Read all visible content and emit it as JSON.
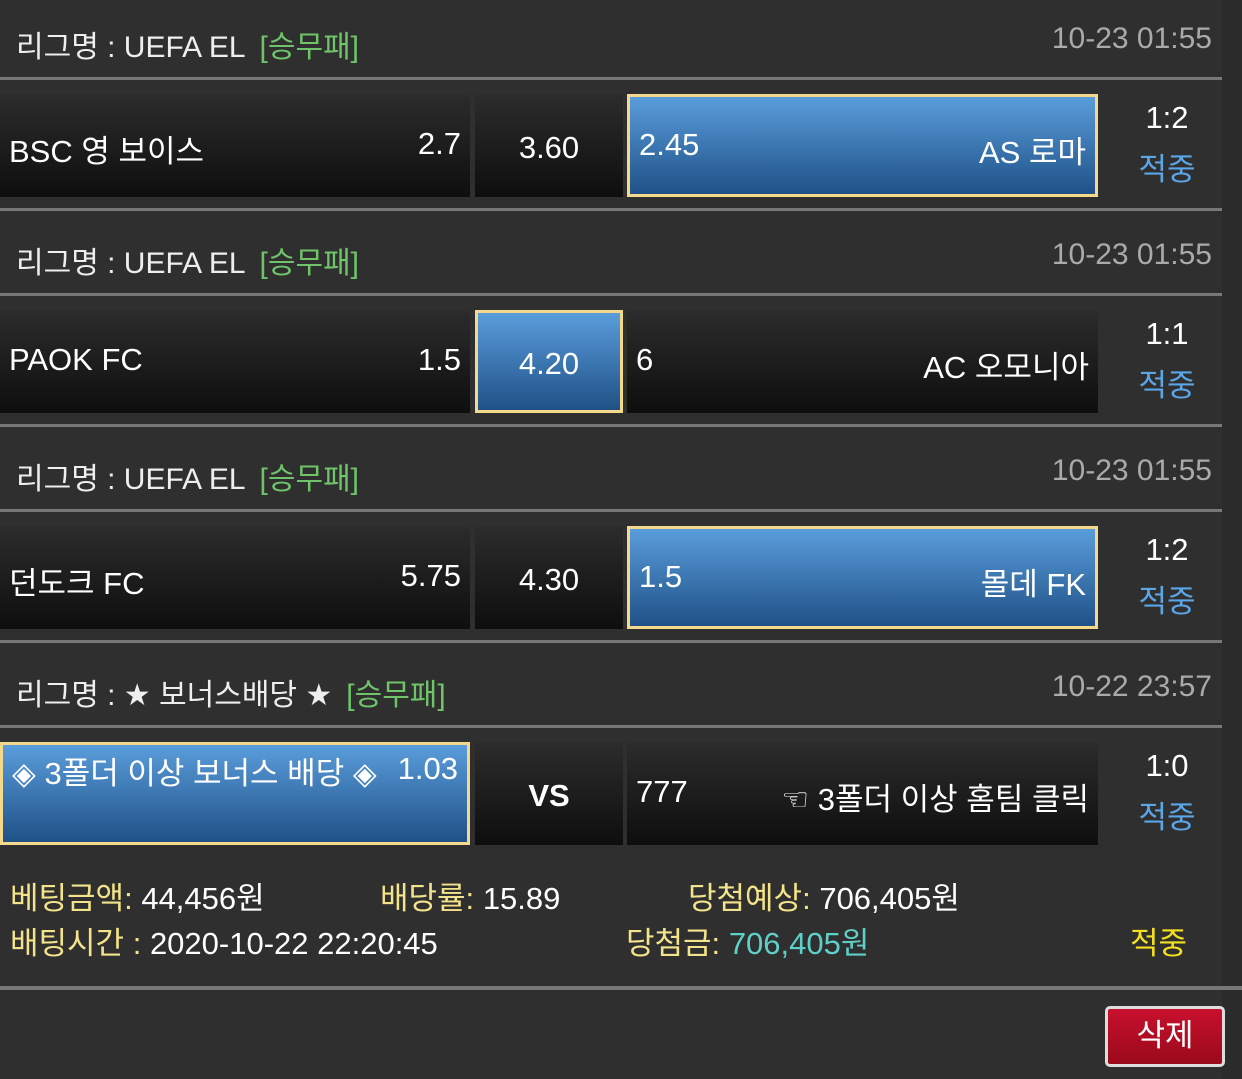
{
  "matches": [
    {
      "league_label": "리그명 : UEFA EL",
      "bet_type": "[승무패]",
      "time": "10-23 01:55",
      "home": "BSC 영 보이스",
      "home_odds": "2.7",
      "draw_odds": "3.60",
      "away_odds": "2.45",
      "away": "AS 로마",
      "selected": "away",
      "score": "1:2",
      "status": "적중"
    },
    {
      "league_label": "리그명 : UEFA EL",
      "bet_type": "[승무패]",
      "time": "10-23 01:55",
      "home": "PAOK FC",
      "home_odds": "1.5",
      "draw_odds": "4.20",
      "away_odds": "6",
      "away": "AC 오모니아",
      "selected": "draw",
      "score": "1:1",
      "status": "적중"
    },
    {
      "league_label": "리그명 : UEFA EL",
      "bet_type": "[승무패]",
      "time": "10-23 01:55",
      "home": "던도크 FC",
      "home_odds": "5.75",
      "draw_odds": "4.30",
      "away_odds": "1.5",
      "away": "몰데 FK",
      "selected": "away",
      "score": "1:2",
      "status": "적중"
    },
    {
      "league_label": "리그명 : ★ 보너스배당 ★",
      "bet_type": "[승무패]",
      "time": "10-22 23:57",
      "home": "◈ 3폴더 이상 보너스 배당 ◈",
      "home_odds": "1.03",
      "draw_odds": "VS",
      "away_odds": "777",
      "away": "☜ 3폴더 이상 홈팀 클릭",
      "selected": "home",
      "score": "1:0",
      "status": "적중"
    }
  ],
  "summary": {
    "bet_amount_label": "베팅금액:",
    "bet_amount": "44,456원",
    "odds_label": "배당률:",
    "odds": "15.89",
    "expected_label": "당첨예상:",
    "expected": "706,405원",
    "bet_time_label": "배팅시간 :",
    "bet_time": "2020-10-22 22:20:45",
    "winnings_label": "당첨금:",
    "winnings": "706,405원",
    "result": "적중"
  },
  "delete_label": "삭제",
  "colors": {
    "selected_border": "#f4d98c",
    "selected_fill": "#3a7bbf",
    "bet_type": "#6fc46a",
    "status": "#5aa6e6",
    "delete": "#c8102e"
  }
}
